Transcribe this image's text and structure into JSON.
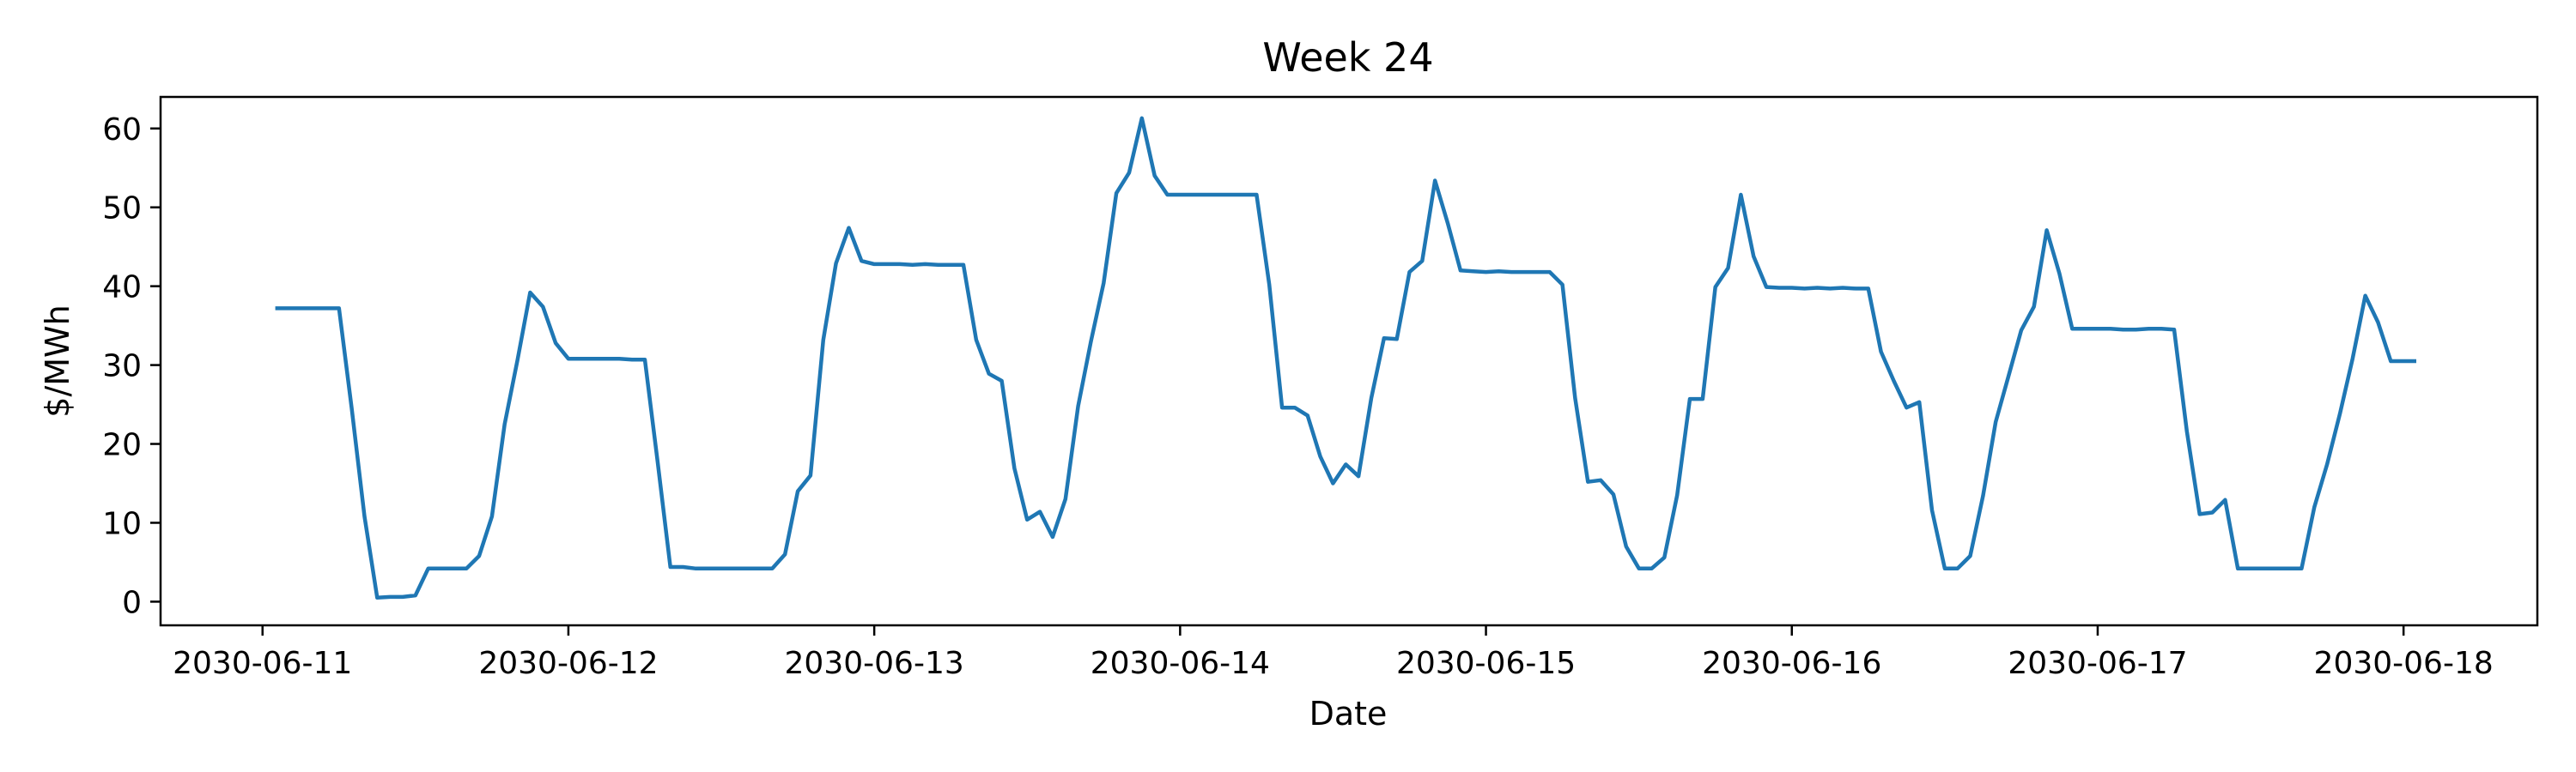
{
  "chart_data": {
    "type": "line",
    "title": "Week 24",
    "xlabel": "Date",
    "ylabel": "$/MWh",
    "xlim": [
      "2030-06-10T16:00",
      "2030-06-18T10:30"
    ],
    "ylim": [
      -3,
      64
    ],
    "yticks": [
      0,
      10,
      20,
      30,
      40,
      50,
      60
    ],
    "xticks": [
      "2030-06-11",
      "2030-06-12",
      "2030-06-13",
      "2030-06-14",
      "2030-06-15",
      "2030-06-16",
      "2030-06-17",
      "2030-06-18"
    ],
    "grid": false,
    "series": [
      {
        "color": "#1f77b4",
        "points": [
          [
            "2030-06-11T01:00",
            37.2
          ],
          [
            "2030-06-11T02:00",
            37.2
          ],
          [
            "2030-06-11T03:00",
            37.2
          ],
          [
            "2030-06-11T04:00",
            37.2
          ],
          [
            "2030-06-11T05:00",
            37.2
          ],
          [
            "2030-06-11T06:00",
            37.2
          ],
          [
            "2030-06-11T07:00",
            24.5
          ],
          [
            "2030-06-11T08:00",
            10.8
          ],
          [
            "2030-06-11T09:00",
            0.5
          ],
          [
            "2030-06-11T10:00",
            0.6
          ],
          [
            "2030-06-11T11:00",
            0.6
          ],
          [
            "2030-06-11T12:00",
            0.8
          ],
          [
            "2030-06-11T13:00",
            4.2
          ],
          [
            "2030-06-11T14:00",
            4.2
          ],
          [
            "2030-06-11T15:00",
            4.2
          ],
          [
            "2030-06-11T16:00",
            4.2
          ],
          [
            "2030-06-11T17:00",
            5.8
          ],
          [
            "2030-06-11T18:00",
            10.8
          ],
          [
            "2030-06-11T19:00",
            22.5
          ],
          [
            "2030-06-11T20:00",
            30.6
          ],
          [
            "2030-06-11T21:00",
            39.2
          ],
          [
            "2030-06-11T22:00",
            37.4
          ],
          [
            "2030-06-11T23:00",
            32.8
          ],
          [
            "2030-06-12T00:00",
            30.8
          ],
          [
            "2030-06-12T01:00",
            30.8
          ],
          [
            "2030-06-12T02:00",
            30.8
          ],
          [
            "2030-06-12T03:00",
            30.8
          ],
          [
            "2030-06-12T04:00",
            30.8
          ],
          [
            "2030-06-12T05:00",
            30.7
          ],
          [
            "2030-06-12T06:00",
            30.7
          ],
          [
            "2030-06-12T07:00",
            17.8
          ],
          [
            "2030-06-12T08:00",
            4.4
          ],
          [
            "2030-06-12T09:00",
            4.4
          ],
          [
            "2030-06-12T10:00",
            4.2
          ],
          [
            "2030-06-12T11:00",
            4.2
          ],
          [
            "2030-06-12T12:00",
            4.2
          ],
          [
            "2030-06-12T13:00",
            4.2
          ],
          [
            "2030-06-12T14:00",
            4.2
          ],
          [
            "2030-06-12T15:00",
            4.2
          ],
          [
            "2030-06-12T16:00",
            4.2
          ],
          [
            "2030-06-12T17:00",
            6.0
          ],
          [
            "2030-06-12T18:00",
            14.0
          ],
          [
            "2030-06-12T19:00",
            16.0
          ],
          [
            "2030-06-12T20:00",
            33.2
          ],
          [
            "2030-06-12T21:00",
            42.9
          ],
          [
            "2030-06-12T22:00",
            47.4
          ],
          [
            "2030-06-12T23:00",
            43.2
          ],
          [
            "2030-06-13T00:00",
            42.8
          ],
          [
            "2030-06-13T01:00",
            42.8
          ],
          [
            "2030-06-13T02:00",
            42.8
          ],
          [
            "2030-06-13T03:00",
            42.7
          ],
          [
            "2030-06-13T04:00",
            42.8
          ],
          [
            "2030-06-13T05:00",
            42.7
          ],
          [
            "2030-06-13T06:00",
            42.7
          ],
          [
            "2030-06-13T07:00",
            42.7
          ],
          [
            "2030-06-13T08:00",
            33.2
          ],
          [
            "2030-06-13T09:00",
            28.9
          ],
          [
            "2030-06-13T10:00",
            28.0
          ],
          [
            "2030-06-13T11:00",
            16.9
          ],
          [
            "2030-06-13T12:00",
            10.4
          ],
          [
            "2030-06-13T13:00",
            11.4
          ],
          [
            "2030-06-13T14:00",
            8.2
          ],
          [
            "2030-06-13T15:00",
            13.0
          ],
          [
            "2030-06-13T16:00",
            24.8
          ],
          [
            "2030-06-13T17:00",
            33.0
          ],
          [
            "2030-06-13T18:00",
            40.4
          ],
          [
            "2030-06-13T19:00",
            51.8
          ],
          [
            "2030-06-13T20:00",
            54.4
          ],
          [
            "2030-06-13T21:00",
            61.3
          ],
          [
            "2030-06-13T22:00",
            54.0
          ],
          [
            "2030-06-13T23:00",
            51.6
          ],
          [
            "2030-06-14T00:00",
            51.6
          ],
          [
            "2030-06-14T01:00",
            51.6
          ],
          [
            "2030-06-14T02:00",
            51.6
          ],
          [
            "2030-06-14T03:00",
            51.6
          ],
          [
            "2030-06-14T04:00",
            51.6
          ],
          [
            "2030-06-14T05:00",
            51.6
          ],
          [
            "2030-06-14T06:00",
            51.6
          ],
          [
            "2030-06-14T07:00",
            40.2
          ],
          [
            "2030-06-14T08:00",
            24.6
          ],
          [
            "2030-06-14T09:00",
            24.6
          ],
          [
            "2030-06-14T10:00",
            23.6
          ],
          [
            "2030-06-14T11:00",
            18.4
          ],
          [
            "2030-06-14T12:00",
            15.0
          ],
          [
            "2030-06-14T13:00",
            17.4
          ],
          [
            "2030-06-14T14:00",
            15.9
          ],
          [
            "2030-06-14T15:00",
            25.8
          ],
          [
            "2030-06-14T16:00",
            33.4
          ],
          [
            "2030-06-14T17:00",
            33.3
          ],
          [
            "2030-06-14T18:00",
            41.8
          ],
          [
            "2030-06-14T19:00",
            43.2
          ],
          [
            "2030-06-14T20:00",
            53.4
          ],
          [
            "2030-06-14T21:00",
            48.0
          ],
          [
            "2030-06-14T22:00",
            42.0
          ],
          [
            "2030-06-14T23:00",
            41.9
          ],
          [
            "2030-06-15T00:00",
            41.8
          ],
          [
            "2030-06-15T01:00",
            41.9
          ],
          [
            "2030-06-15T02:00",
            41.8
          ],
          [
            "2030-06-15T03:00",
            41.8
          ],
          [
            "2030-06-15T04:00",
            41.8
          ],
          [
            "2030-06-15T05:00",
            41.8
          ],
          [
            "2030-06-15T06:00",
            40.2
          ],
          [
            "2030-06-15T07:00",
            25.8
          ],
          [
            "2030-06-15T08:00",
            15.2
          ],
          [
            "2030-06-15T09:00",
            15.4
          ],
          [
            "2030-06-15T10:00",
            13.6
          ],
          [
            "2030-06-15T11:00",
            7.0
          ],
          [
            "2030-06-15T12:00",
            4.2
          ],
          [
            "2030-06-15T13:00",
            4.2
          ],
          [
            "2030-06-15T14:00",
            5.6
          ],
          [
            "2030-06-15T15:00",
            13.5
          ],
          [
            "2030-06-15T16:00",
            25.7
          ],
          [
            "2030-06-15T17:00",
            25.7
          ],
          [
            "2030-06-15T18:00",
            39.9
          ],
          [
            "2030-06-15T19:00",
            42.3
          ],
          [
            "2030-06-15T20:00",
            51.6
          ],
          [
            "2030-06-15T21:00",
            43.8
          ],
          [
            "2030-06-15T22:00",
            39.9
          ],
          [
            "2030-06-15T23:00",
            39.8
          ],
          [
            "2030-06-16T00:00",
            39.8
          ],
          [
            "2030-06-16T01:00",
            39.7
          ],
          [
            "2030-06-16T02:00",
            39.8
          ],
          [
            "2030-06-16T03:00",
            39.7
          ],
          [
            "2030-06-16T04:00",
            39.8
          ],
          [
            "2030-06-16T05:00",
            39.7
          ],
          [
            "2030-06-16T06:00",
            39.7
          ],
          [
            "2030-06-16T07:00",
            31.7
          ],
          [
            "2030-06-16T08:00",
            28.0
          ],
          [
            "2030-06-16T09:00",
            24.6
          ],
          [
            "2030-06-16T10:00",
            25.3
          ],
          [
            "2030-06-16T11:00",
            11.6
          ],
          [
            "2030-06-16T12:00",
            4.2
          ],
          [
            "2030-06-16T13:00",
            4.2
          ],
          [
            "2030-06-16T14:00",
            5.8
          ],
          [
            "2030-06-16T15:00",
            13.4
          ],
          [
            "2030-06-16T16:00",
            22.8
          ],
          [
            "2030-06-16T17:00",
            28.6
          ],
          [
            "2030-06-16T18:00",
            34.4
          ],
          [
            "2030-06-16T19:00",
            37.4
          ],
          [
            "2030-06-16T20:00",
            47.1
          ],
          [
            "2030-06-16T21:00",
            41.6
          ],
          [
            "2030-06-16T22:00",
            34.6
          ],
          [
            "2030-06-16T23:00",
            34.6
          ],
          [
            "2030-06-17T00:00",
            34.6
          ],
          [
            "2030-06-17T01:00",
            34.6
          ],
          [
            "2030-06-17T02:00",
            34.5
          ],
          [
            "2030-06-17T03:00",
            34.5
          ],
          [
            "2030-06-17T04:00",
            34.6
          ],
          [
            "2030-06-17T05:00",
            34.6
          ],
          [
            "2030-06-17T06:00",
            34.5
          ],
          [
            "2030-06-17T07:00",
            21.6
          ],
          [
            "2030-06-17T08:00",
            11.1
          ],
          [
            "2030-06-17T09:00",
            11.3
          ],
          [
            "2030-06-17T10:00",
            12.9
          ],
          [
            "2030-06-17T11:00",
            4.2
          ],
          [
            "2030-06-17T12:00",
            4.2
          ],
          [
            "2030-06-17T13:00",
            4.2
          ],
          [
            "2030-06-17T14:00",
            4.2
          ],
          [
            "2030-06-17T15:00",
            4.2
          ],
          [
            "2030-06-17T16:00",
            4.2
          ],
          [
            "2030-06-17T17:00",
            12.0
          ],
          [
            "2030-06-17T18:00",
            17.4
          ],
          [
            "2030-06-17T19:00",
            23.8
          ],
          [
            "2030-06-17T20:00",
            30.8
          ],
          [
            "2030-06-17T21:00",
            38.8
          ],
          [
            "2030-06-17T22:00",
            35.4
          ],
          [
            "2030-06-17T23:00",
            30.5
          ],
          [
            "2030-06-18T00:00",
            30.5
          ],
          [
            "2030-06-18T01:00",
            30.5
          ]
        ]
      }
    ]
  }
}
